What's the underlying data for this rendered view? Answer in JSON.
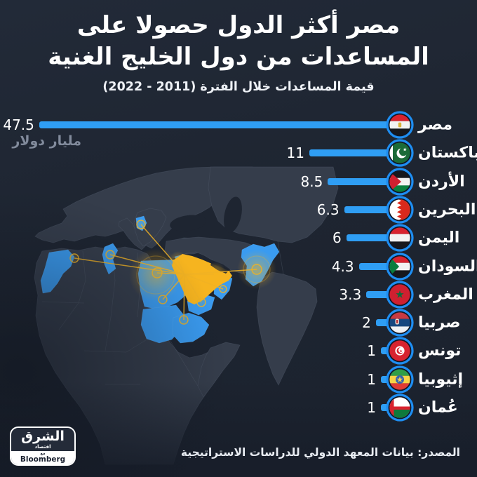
{
  "title": {
    "line1": "مصر أكثر الدول حصولا على",
    "line2": "المساعدات من دول الخليج الغنية"
  },
  "subtitle": "قيمة المساعدات خلال الفترة (2011 - 2022)",
  "unit_label": "مليار دولار",
  "chart_data": {
    "type": "bar",
    "orientation": "horizontal",
    "title": "مصر أكثر الدول حصولا على المساعدات من دول الخليج الغنية",
    "subtitle": "قيمة المساعدات خلال الفترة (2011 - 2022)",
    "unit": "مليار دولار",
    "categories": [
      "مصر",
      "باكستان",
      "الأردن",
      "البحرين",
      "اليمن",
      "السودان",
      "المغرب",
      "صربيا",
      "تونس",
      "إثيوبيا",
      "عُمان"
    ],
    "values": [
      47.5,
      11,
      8.5,
      6.3,
      6,
      4.3,
      3.3,
      2,
      1,
      1,
      1
    ],
    "flags": [
      "egypt",
      "pakistan",
      "jordan",
      "bahrain",
      "yemen",
      "sudan",
      "morocco",
      "serbia",
      "tunisia",
      "ethiopia",
      "oman"
    ],
    "xlim": [
      0,
      47.5
    ],
    "grid": false,
    "legend": false
  },
  "map": {
    "donor_region_highlight": "gulf-countries-yellow",
    "recipient_highlight": "recipient-countries-blue"
  },
  "source": "المصدر: بيانات المعهد الدولي للدراسات الاستراتيجية",
  "logo": {
    "brand": "الشرق",
    "sub": "اقتصاد",
    "with": "مع",
    "partner": "Bloomberg"
  },
  "colors": {
    "background": "#1e2531",
    "bar": "#2f9ef4",
    "flag_ring": "#1e8ef2",
    "accent_yellow": "#f5b31e",
    "map_land": "#39414f",
    "map_highlight_blue": "#3a9bf0",
    "unit_text": "#828b9c",
    "text": "#ffffff"
  }
}
